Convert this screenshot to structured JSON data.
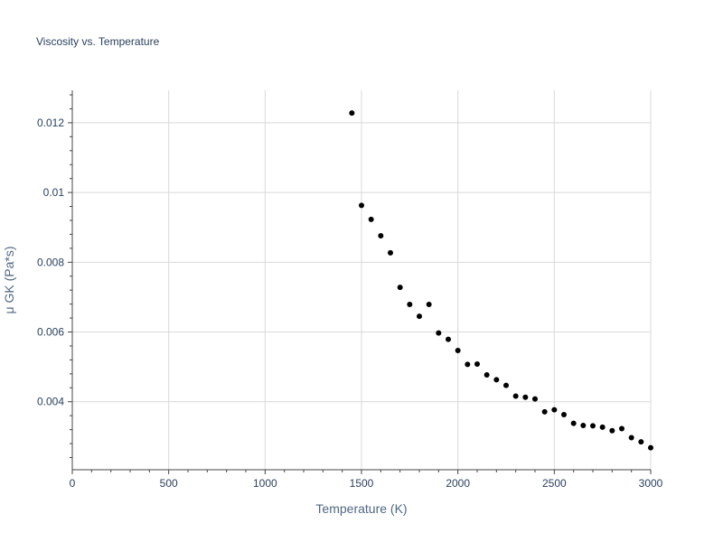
{
  "chart_data": {
    "type": "scatter",
    "title": "Viscosity vs. Temperature",
    "xlabel": "Temperature (K)",
    "ylabel": "μ GK (Pa*s)",
    "xlim": [
      0,
      3000
    ],
    "ylim": [
      0.00205,
      0.01293
    ],
    "x_ticks": [
      0,
      500,
      1000,
      1500,
      2000,
      2500,
      3000
    ],
    "x_tick_labels": [
      "0",
      "500",
      "1000",
      "1500",
      "2000",
      "2500",
      "3000"
    ],
    "y_ticks": [
      0.004,
      0.006,
      0.008,
      0.01,
      0.012
    ],
    "y_tick_labels": [
      "0.004",
      "0.006",
      "0.008",
      "0.01",
      "0.012"
    ],
    "grid": true,
    "marker_color": "#000000",
    "x": [
      1450,
      1500,
      1550,
      1600,
      1650,
      1700,
      1750,
      1800,
      1850,
      1900,
      1950,
      2000,
      2050,
      2100,
      2150,
      2200,
      2250,
      2300,
      2350,
      2400,
      2450,
      2500,
      2550,
      2600,
      2650,
      2700,
      2750,
      2800,
      2850,
      2900,
      2950,
      3000
    ],
    "y": [
      0.01228,
      0.00963,
      0.00923,
      0.00876,
      0.00827,
      0.00728,
      0.00679,
      0.00645,
      0.00679,
      0.00597,
      0.00579,
      0.00547,
      0.00507,
      0.00508,
      0.00477,
      0.00463,
      0.00447,
      0.00416,
      0.00413,
      0.00408,
      0.00371,
      0.00377,
      0.00363,
      0.00338,
      0.00332,
      0.00331,
      0.00327,
      0.00317,
      0.00323,
      0.00297,
      0.00285,
      0.00268
    ]
  }
}
